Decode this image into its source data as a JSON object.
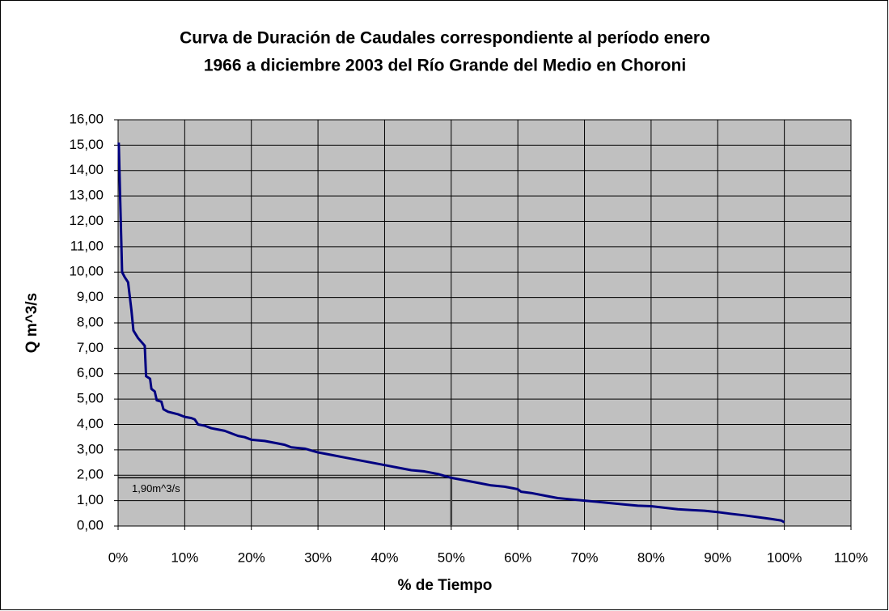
{
  "chart_data": {
    "type": "line",
    "title": [
      "Curva de Duración de Caudales correspondiente al período enero",
      "1966 a diciembre 2003 del Río Grande del Medio en Choroni"
    ],
    "xlabel": "% de Tiempo",
    "ylabel": "Q m^3/s",
    "color": "#000080",
    "background": "#c0c0c0",
    "grid": true,
    "x": [
      0.1,
      0.3,
      0.6,
      1,
      1.5,
      2,
      2.3,
      3,
      4,
      4.2,
      4.8,
      5,
      5.5,
      5.8,
      6.5,
      6.8,
      7.5,
      9,
      10,
      11,
      11.5,
      12,
      13,
      14,
      15,
      16,
      17,
      18,
      19,
      20,
      22,
      24,
      25,
      26,
      28,
      30,
      32,
      34,
      36,
      38,
      40,
      42,
      44,
      46,
      48,
      50,
      52,
      54,
      56,
      58,
      60,
      60.5,
      62,
      64,
      66,
      68,
      70,
      72,
      74,
      76,
      78,
      80,
      82,
      84,
      86,
      88,
      90,
      92,
      94,
      96,
      98,
      99.5,
      100
    ],
    "values": [
      15.1,
      13,
      10,
      9.8,
      9.6,
      8.5,
      7.7,
      7.4,
      7.1,
      5.9,
      5.8,
      5.4,
      5.3,
      4.95,
      4.9,
      4.6,
      4.5,
      4.4,
      4.3,
      4.25,
      4.2,
      4.0,
      3.95,
      3.85,
      3.8,
      3.75,
      3.65,
      3.55,
      3.5,
      3.4,
      3.35,
      3.25,
      3.2,
      3.1,
      3.05,
      2.9,
      2.8,
      2.7,
      2.6,
      2.5,
      2.4,
      2.3,
      2.2,
      2.15,
      2.05,
      1.9,
      1.8,
      1.7,
      1.6,
      1.55,
      1.45,
      1.35,
      1.3,
      1.2,
      1.1,
      1.05,
      1.0,
      0.95,
      0.9,
      0.85,
      0.8,
      0.78,
      0.72,
      0.66,
      0.63,
      0.6,
      0.55,
      0.48,
      0.42,
      0.35,
      0.28,
      0.22,
      0.15
    ],
    "xlim": [
      0,
      110
    ],
    "xticks": [
      {
        "value": 0,
        "label": "0%"
      },
      {
        "value": 10,
        "label": "10%"
      },
      {
        "value": 20,
        "label": "20%"
      },
      {
        "value": 30,
        "label": "30%"
      },
      {
        "value": 40,
        "label": "40%"
      },
      {
        "value": 50,
        "label": "50%"
      },
      {
        "value": 60,
        "label": "60%"
      },
      {
        "value": 70,
        "label": "70%"
      },
      {
        "value": 80,
        "label": "80%"
      },
      {
        "value": 90,
        "label": "90%"
      },
      {
        "value": 100,
        "label": "100%"
      },
      {
        "value": 110,
        "label": "110%"
      }
    ],
    "ylim": [
      0,
      16
    ],
    "yticks": [
      {
        "value": 0,
        "label": "0,00"
      },
      {
        "value": 1,
        "label": "1,00"
      },
      {
        "value": 2,
        "label": "2,00"
      },
      {
        "value": 3,
        "label": "3,00"
      },
      {
        "value": 4,
        "label": "4,00"
      },
      {
        "value": 5,
        "label": "5,00"
      },
      {
        "value": 6,
        "label": "6,00"
      },
      {
        "value": 7,
        "label": "7,00"
      },
      {
        "value": 8,
        "label": "8,00"
      },
      {
        "value": 9,
        "label": "9,00"
      },
      {
        "value": 10,
        "label": "10,00"
      },
      {
        "value": 11,
        "label": "11,00"
      },
      {
        "value": 12,
        "label": "12,00"
      },
      {
        "value": 13,
        "label": "13,00"
      },
      {
        "value": 14,
        "label": "14,00"
      },
      {
        "value": 15,
        "label": "15,00"
      },
      {
        "value": 16,
        "label": "16,00"
      }
    ],
    "annotation": {
      "text": "1,90m^3/s",
      "x": 50,
      "y": 1.9
    }
  }
}
